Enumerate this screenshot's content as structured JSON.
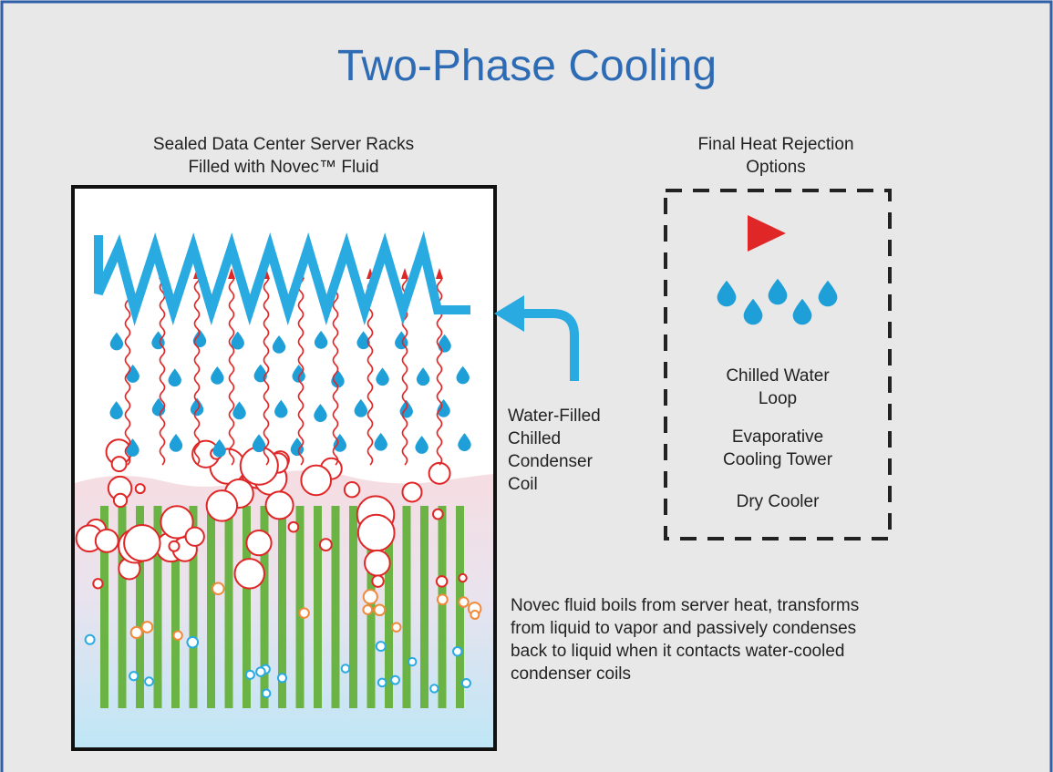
{
  "title": "Two-Phase Cooling",
  "rack_label": [
    "Sealed Data Center Server Racks",
    "Filled with Novec™ Fluid"
  ],
  "rejection_label": [
    "Final Heat Rejection",
    "Options"
  ],
  "options": [
    [
      "Chilled Water",
      "Loop"
    ],
    [
      "Evaporative",
      "Cooling Tower"
    ],
    [
      "Dry Cooler"
    ]
  ],
  "coil_label": [
    "Water-Filled",
    "Chilled",
    "Condenser",
    "Coil"
  ],
  "description": [
    "Novec fluid boils from server heat, transforms",
    "from liquid to vapor and passively condenses",
    "back to liquid when it contacts water-cooled",
    "condenser coils"
  ]
}
